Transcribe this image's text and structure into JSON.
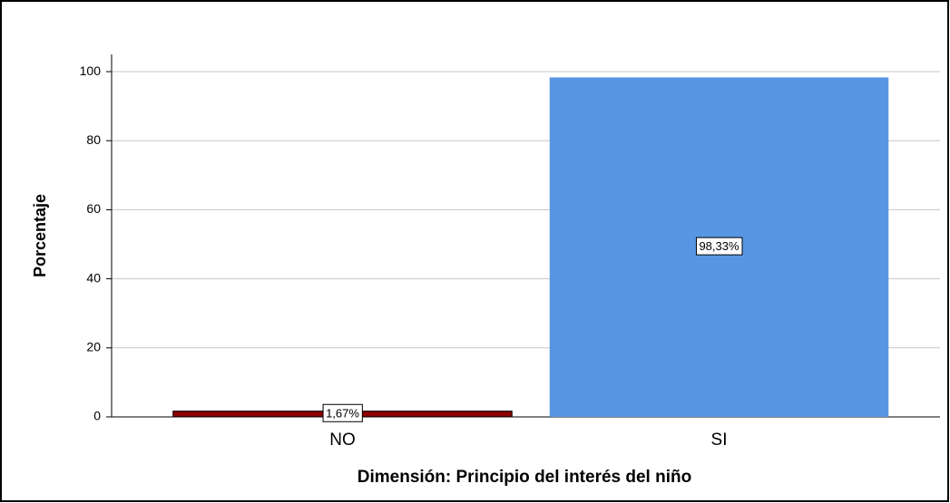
{
  "chart_data": {
    "type": "bar",
    "x_label": "Dimensión: Principio del interés del niño",
    "y_label": "Porcentaje",
    "categories": [
      "NO",
      "SI"
    ],
    "values": [
      1.67,
      98.33
    ],
    "value_labels": [
      "1,67%",
      "98,33%"
    ],
    "colors": [
      "#8b0000",
      "#5896e3"
    ],
    "ylim": [
      0,
      105
    ],
    "yticks": [
      0,
      20,
      40,
      60,
      80,
      100
    ],
    "grid": true
  }
}
